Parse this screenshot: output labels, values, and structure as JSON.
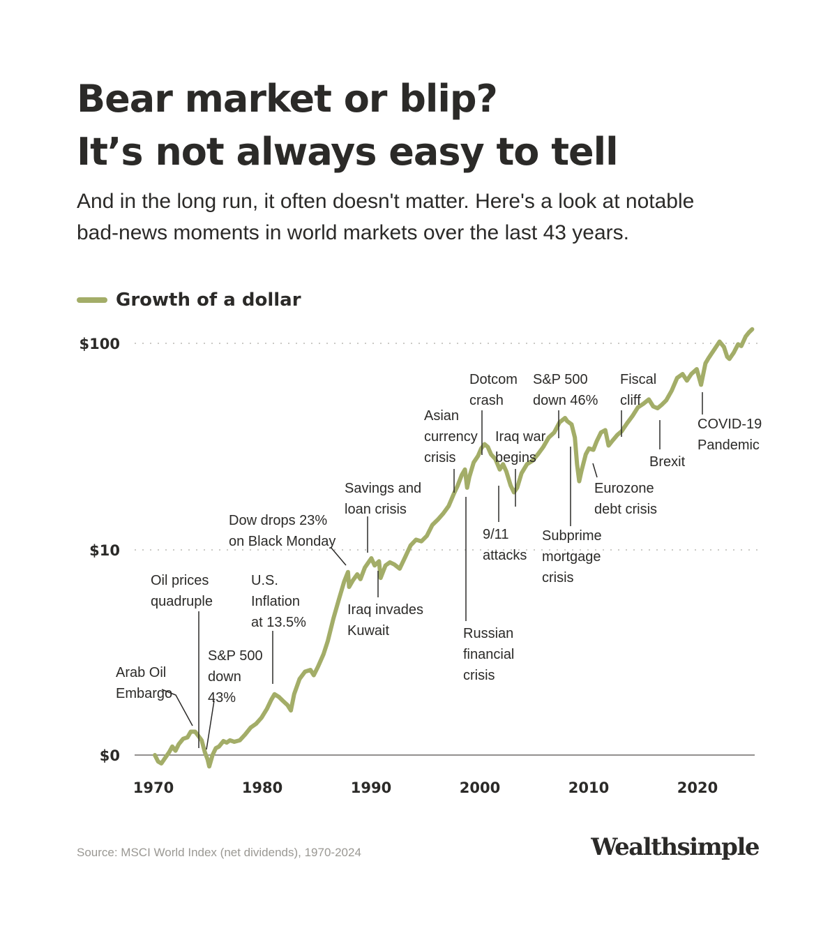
{
  "header": {
    "title_line1": "Bear market or blip?",
    "title_line2": "It’s not always easy to tell",
    "subtitle_line1": "And in the long run, it often doesn't matter. Here's a look at notable",
    "subtitle_line2": "bad-news moments in world markets over the last 43 years."
  },
  "legend": {
    "label": "Growth of a dollar"
  },
  "colors": {
    "line": "#a3ad68",
    "text": "#2b2a28",
    "grid": "#b9b7b2",
    "axis": "#6e6c68",
    "source": "#9a9893"
  },
  "footer": {
    "source": "Source: MSCI World Index (net dividends), 1970-2024",
    "brand": "Wealthsimple"
  },
  "chart_data": {
    "type": "line",
    "title": "",
    "xlabel": "",
    "ylabel": "",
    "x_ticks": [
      "1970",
      "1980",
      "1990",
      "2000",
      "2010",
      "2020"
    ],
    "y_ticks": [
      "$0",
      "$10",
      "$100"
    ],
    "y_scale": "log",
    "grid": "horizontal dotted at $10 and $100",
    "series": [
      {
        "name": "Growth of a dollar",
        "points": [
          [
            1970.0,
            1.0
          ],
          [
            1970.3,
            0.93
          ],
          [
            1970.6,
            0.91
          ],
          [
            1970.9,
            0.96
          ],
          [
            1971.3,
            1.03
          ],
          [
            1971.6,
            1.1
          ],
          [
            1971.9,
            1.05
          ],
          [
            1972.2,
            1.13
          ],
          [
            1972.6,
            1.2
          ],
          [
            1973.0,
            1.22
          ],
          [
            1973.3,
            1.3
          ],
          [
            1973.7,
            1.3
          ],
          [
            1974.0,
            1.24
          ],
          [
            1974.3,
            1.18
          ],
          [
            1974.6,
            1.03
          ],
          [
            1974.85,
            0.95
          ],
          [
            1975.0,
            0.88
          ],
          [
            1975.3,
            1.0
          ],
          [
            1975.6,
            1.08
          ],
          [
            1975.9,
            1.1
          ],
          [
            1976.3,
            1.17
          ],
          [
            1976.6,
            1.15
          ],
          [
            1976.9,
            1.18
          ],
          [
            1977.3,
            1.16
          ],
          [
            1977.8,
            1.18
          ],
          [
            1978.3,
            1.26
          ],
          [
            1978.8,
            1.36
          ],
          [
            1979.3,
            1.42
          ],
          [
            1979.8,
            1.52
          ],
          [
            1980.3,
            1.68
          ],
          [
            1980.7,
            1.86
          ],
          [
            1981.0,
            1.98
          ],
          [
            1981.4,
            1.92
          ],
          [
            1981.8,
            1.83
          ],
          [
            1982.2,
            1.75
          ],
          [
            1982.5,
            1.65
          ],
          [
            1982.8,
            1.98
          ],
          [
            1983.3,
            2.35
          ],
          [
            1983.8,
            2.55
          ],
          [
            1984.3,
            2.6
          ],
          [
            1984.6,
            2.45
          ],
          [
            1985.0,
            2.7
          ],
          [
            1985.5,
            3.1
          ],
          [
            1985.9,
            3.6
          ],
          [
            1986.4,
            4.6
          ],
          [
            1986.9,
            5.7
          ],
          [
            1987.4,
            7.0
          ],
          [
            1987.75,
            7.8
          ],
          [
            1987.85,
            6.6
          ],
          [
            1988.2,
            7.1
          ],
          [
            1988.6,
            7.6
          ],
          [
            1988.9,
            7.2
          ],
          [
            1989.3,
            8.2
          ],
          [
            1989.9,
            9.1
          ],
          [
            1990.2,
            8.4
          ],
          [
            1990.6,
            8.8
          ],
          [
            1990.75,
            7.3
          ],
          [
            1991.2,
            8.4
          ],
          [
            1991.6,
            8.7
          ],
          [
            1992.0,
            8.5
          ],
          [
            1992.5,
            8.1
          ],
          [
            1993.0,
            9.2
          ],
          [
            1993.5,
            10.5
          ],
          [
            1994.0,
            11.2
          ],
          [
            1994.5,
            11.0
          ],
          [
            1995.0,
            11.7
          ],
          [
            1995.5,
            13.2
          ],
          [
            1996.0,
            14.0
          ],
          [
            1996.5,
            15.0
          ],
          [
            1997.0,
            16.3
          ],
          [
            1997.5,
            18.8
          ],
          [
            1997.8,
            20.3
          ],
          [
            1998.2,
            23.0
          ],
          [
            1998.5,
            24.5
          ],
          [
            1998.7,
            20.0
          ],
          [
            1998.9,
            22.5
          ],
          [
            1999.3,
            26.5
          ],
          [
            1999.7,
            28.5
          ],
          [
            2000.0,
            31.0
          ],
          [
            2000.3,
            32.5
          ],
          [
            2000.6,
            31.5
          ],
          [
            2000.9,
            29.0
          ],
          [
            2001.3,
            27.5
          ],
          [
            2001.7,
            24.5
          ],
          [
            2002.0,
            26.0
          ],
          [
            2002.3,
            24.0
          ],
          [
            2002.7,
            20.5
          ],
          [
            2003.0,
            19.0
          ],
          [
            2003.3,
            20.0
          ],
          [
            2003.7,
            23.5
          ],
          [
            2004.2,
            26.0
          ],
          [
            2004.7,
            27.0
          ],
          [
            2005.2,
            29.0
          ],
          [
            2005.7,
            31.5
          ],
          [
            2006.2,
            35.0
          ],
          [
            2006.7,
            37.0
          ],
          [
            2007.2,
            41.5
          ],
          [
            2007.7,
            43.5
          ],
          [
            2007.9,
            42.0
          ],
          [
            2008.3,
            40.5
          ],
          [
            2008.6,
            35.0
          ],
          [
            2008.8,
            26.0
          ],
          [
            2009.0,
            21.5
          ],
          [
            2009.2,
            24.0
          ],
          [
            2009.6,
            29.0
          ],
          [
            2009.9,
            31.0
          ],
          [
            2010.3,
            30.5
          ],
          [
            2010.6,
            33.5
          ],
          [
            2011.0,
            37.0
          ],
          [
            2011.4,
            38.0
          ],
          [
            2011.7,
            32.0
          ],
          [
            2012.0,
            33.5
          ],
          [
            2012.5,
            36.0
          ],
          [
            2012.9,
            37.5
          ],
          [
            2013.4,
            41.0
          ],
          [
            2013.9,
            44.5
          ],
          [
            2014.4,
            49.0
          ],
          [
            2014.9,
            51.0
          ],
          [
            2015.4,
            53.5
          ],
          [
            2015.8,
            49.5
          ],
          [
            2016.2,
            48.5
          ],
          [
            2016.6,
            50.5
          ],
          [
            2017.0,
            53.0
          ],
          [
            2017.5,
            59.0
          ],
          [
            2018.0,
            68.0
          ],
          [
            2018.5,
            71.0
          ],
          [
            2018.9,
            66.0
          ],
          [
            2019.3,
            71.0
          ],
          [
            2019.8,
            75.0
          ],
          [
            2020.2,
            63.0
          ],
          [
            2020.6,
            80.0
          ],
          [
            2020.9,
            85.0
          ],
          [
            2021.4,
            93.0
          ],
          [
            2021.9,
            102.0
          ],
          [
            2022.3,
            96.0
          ],
          [
            2022.6,
            86.0
          ],
          [
            2022.8,
            84.0
          ],
          [
            2023.2,
            90.0
          ],
          [
            2023.6,
            99.0
          ],
          [
            2023.9,
            97.0
          ],
          [
            2024.3,
            108.0
          ],
          [
            2024.6,
            113.0
          ],
          [
            2024.9,
            117.0
          ]
        ]
      }
    ],
    "annotations": [
      {
        "lines": [
          "Arab Oil",
          "Embargo"
        ],
        "year": 1973.9
      },
      {
        "lines": [
          "Oil prices",
          "quadruple"
        ],
        "year": 1974.3
      },
      {
        "lines": [
          "S&P 500",
          "down",
          "43%"
        ],
        "year": 1974.85
      },
      {
        "lines": [
          "U.S.",
          "Inflation",
          "at 13.5%"
        ],
        "year": 1981.0
      },
      {
        "lines": [
          "Dow drops 23%",
          "on Black Monday"
        ],
        "year": 1987.8
      },
      {
        "lines": [
          "Savings and",
          "loan crisis"
        ],
        "year": 1989.9
      },
      {
        "lines": [
          "Iraq invades",
          "Kuwait"
        ],
        "year": 1990.7
      },
      {
        "lines": [
          "Asian",
          "currency",
          "crisis"
        ],
        "year": 1997.8
      },
      {
        "lines": [
          "Russian",
          "financial",
          "crisis"
        ],
        "year": 1998.6
      },
      {
        "lines": [
          "Dotcom",
          "crash"
        ],
        "year": 2000.3
      },
      {
        "lines": [
          "9/11",
          "attacks"
        ],
        "year": 2001.7
      },
      {
        "lines": [
          "Iraq war",
          "begins"
        ],
        "year": 2003.2
      },
      {
        "lines": [
          "S&P 500",
          "down 46%"
        ],
        "year": 2007.7
      },
      {
        "lines": [
          "Subprime",
          "mortgage",
          "crisis"
        ],
        "year": 2008.6
      },
      {
        "lines": [
          "Eurozone",
          "debt crisis"
        ],
        "year": 2010.3
      },
      {
        "lines": [
          "Fiscal",
          "cliff"
        ],
        "year": 2012.9
      },
      {
        "lines": [
          "Brexit"
        ],
        "year": 2016.5
      },
      {
        "lines": [
          "COVID-19",
          "Pandemic"
        ],
        "year": 2020.2
      }
    ]
  }
}
